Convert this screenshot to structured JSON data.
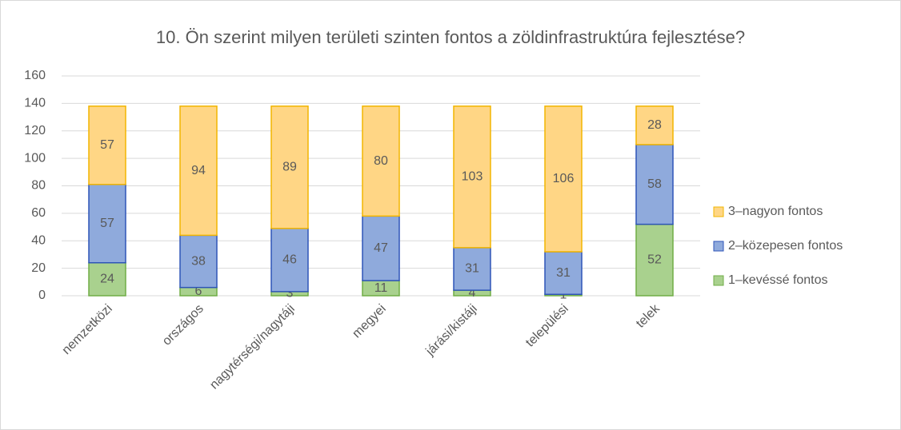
{
  "chart_data": {
    "type": "stacked_bar",
    "title": "10. Ön szerint milyen területi szinten fontos a zöldinfrastruktúra fejlesztése?",
    "categories": [
      "nemzetközi",
      "országos",
      "nagytérségi/nagytáji",
      "megyei",
      "járási/kistáji",
      "települési",
      "telek"
    ],
    "series": [
      {
        "name": "1–kevéssé fontos",
        "color": "#a9d18e",
        "edgecolor": "#70ad47",
        "values": [
          24,
          6,
          3,
          11,
          4,
          1,
          52
        ]
      },
      {
        "name": "2–közepesen fontos",
        "color": "#8faadc",
        "edgecolor": "#2f55b8",
        "values": [
          57,
          38,
          46,
          47,
          31,
          31,
          58
        ]
      },
      {
        "name": "3–nagyon fontos",
        "color": "#ffd685",
        "edgecolor": "#f2b500",
        "values": [
          57,
          94,
          89,
          80,
          103,
          106,
          28
        ]
      }
    ],
    "ylim": [
      0,
      160
    ],
    "yticks": [
      0,
      20,
      40,
      60,
      80,
      100,
      120,
      140,
      160
    ],
    "grid": true,
    "legend": "right"
  }
}
